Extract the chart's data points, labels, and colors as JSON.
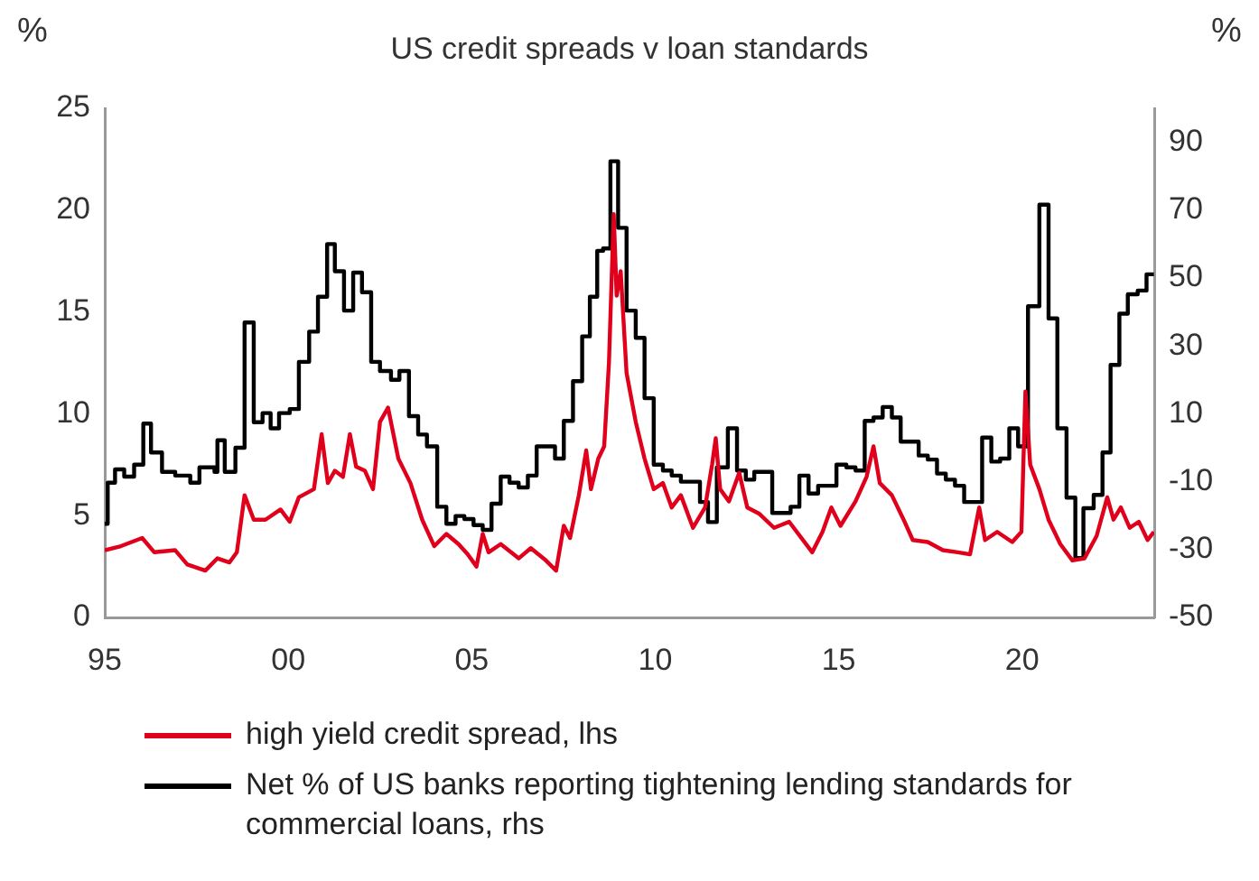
{
  "chart_data": {
    "type": "line",
    "title": "US credit spreads v loan standards",
    "ylabel": "%",
    "y2label": "%",
    "xlim": [
      1995,
      2023.6
    ],
    "xticks": [
      {
        "value": 1995,
        "label": "95"
      },
      {
        "value": 2000,
        "label": "00"
      },
      {
        "value": 2005,
        "label": "05"
      },
      {
        "value": 2010,
        "label": "10"
      },
      {
        "value": 2015,
        "label": "15"
      },
      {
        "value": 2020,
        "label": "20"
      }
    ],
    "ylim": [
      0,
      25
    ],
    "yticks": [
      0,
      5,
      10,
      15,
      20,
      25
    ],
    "y2lim": [
      -50,
      100
    ],
    "y2ticks": [
      -50,
      -30,
      -10,
      10,
      30,
      50,
      70,
      90
    ],
    "grid": false,
    "legend": "bottom",
    "series": [
      {
        "name": "high yield credit spread, lhs",
        "type": "line",
        "axis": "y",
        "color": "#e0001b",
        "x": [
          1995.0,
          1995.44,
          1996.02,
          1996.35,
          1996.92,
          1997.25,
          1997.74,
          1998.07,
          1998.4,
          1998.6,
          1998.81,
          1999.06,
          1999.38,
          1999.79,
          2000.04,
          2000.29,
          2000.7,
          2000.91,
          2001.08,
          2001.27,
          2001.49,
          2001.68,
          2001.85,
          2002.09,
          2002.31,
          2002.5,
          2002.72,
          2003.0,
          2003.33,
          2003.65,
          2003.98,
          2004.31,
          2004.64,
          2004.89,
          2005.13,
          2005.3,
          2005.46,
          2005.79,
          2006.28,
          2006.61,
          2007.02,
          2007.3,
          2007.51,
          2007.68,
          2007.92,
          2008.12,
          2008.25,
          2008.45,
          2008.61,
          2008.74,
          2008.87,
          2008.95,
          2009.06,
          2009.22,
          2009.47,
          2009.71,
          2009.96,
          2010.21,
          2010.45,
          2010.7,
          2011.03,
          2011.36,
          2011.55,
          2011.65,
          2011.77,
          2012.01,
          2012.29,
          2012.51,
          2012.83,
          2013.24,
          2013.65,
          2014.28,
          2014.56,
          2014.8,
          2015.05,
          2015.46,
          2015.76,
          2015.95,
          2016.12,
          2016.45,
          2016.77,
          2017.02,
          2017.43,
          2017.84,
          2018.25,
          2018.58,
          2018.83,
          2018.99,
          2019.32,
          2019.73,
          2019.98,
          2020.09,
          2020.22,
          2020.47,
          2020.72,
          2021.04,
          2021.37,
          2021.7,
          2022.03,
          2022.32,
          2022.49,
          2022.69,
          2022.93,
          2023.18,
          2023.42,
          2023.59
        ],
        "values": [
          3.3,
          3.5,
          3.9,
          3.2,
          3.3,
          2.6,
          2.3,
          2.9,
          2.7,
          3.2,
          6.0,
          4.8,
          4.8,
          5.3,
          4.7,
          5.9,
          6.3,
          9.0,
          6.6,
          7.2,
          6.9,
          9.0,
          7.4,
          7.2,
          6.3,
          9.6,
          10.3,
          7.8,
          6.6,
          4.8,
          3.5,
          4.1,
          3.6,
          3.1,
          2.5,
          4.1,
          3.2,
          3.6,
          2.9,
          3.4,
          2.8,
          2.3,
          4.5,
          3.9,
          6.0,
          8.2,
          6.3,
          7.8,
          8.4,
          12.5,
          19.8,
          15.8,
          17.0,
          12.0,
          9.6,
          7.8,
          6.3,
          6.6,
          5.4,
          6.0,
          4.4,
          5.4,
          7.5,
          8.8,
          6.3,
          5.7,
          7.1,
          5.4,
          5.1,
          4.4,
          4.7,
          3.2,
          4.2,
          5.4,
          4.5,
          5.7,
          6.9,
          8.4,
          6.6,
          6.0,
          4.8,
          3.8,
          3.7,
          3.3,
          3.2,
          3.1,
          5.4,
          3.8,
          4.2,
          3.7,
          4.2,
          11.1,
          7.5,
          6.3,
          4.8,
          3.6,
          2.8,
          2.9,
          4.0,
          5.9,
          4.8,
          5.4,
          4.4,
          4.7,
          3.8,
          4.2
        ]
      },
      {
        "name": "Net % of US banks reporting tightening lending standards for commercial loans, rhs",
        "type": "step",
        "axis": "y2",
        "color": "#000000",
        "x": [
          1995.0,
          1995.08,
          1995.28,
          1995.53,
          1995.8,
          1996.05,
          1996.26,
          1996.56,
          1996.92,
          1997.33,
          1997.58,
          1997.99,
          1998.07,
          1998.27,
          1998.56,
          1998.81,
          1999.06,
          1999.3,
          1999.52,
          1999.75,
          2000.04,
          2000.29,
          2000.57,
          2000.81,
          2001.06,
          2001.27,
          2001.52,
          2001.77,
          2002.01,
          2002.26,
          2002.5,
          2002.8,
          2003.03,
          2003.29,
          2003.54,
          2003.78,
          2004.06,
          2004.31,
          2004.56,
          2004.8,
          2005.05,
          2005.3,
          2005.54,
          2005.79,
          2006.03,
          2006.28,
          2006.53,
          2006.77,
          2007.27,
          2007.51,
          2007.76,
          2008.01,
          2008.22,
          2008.42,
          2008.58,
          2008.78,
          2008.99,
          2009.22,
          2009.47,
          2009.71,
          2009.96,
          2010.21,
          2010.45,
          2010.7,
          2011.22,
          2011.44,
          2011.68,
          2011.98,
          2012.23,
          2012.47,
          2012.7,
          2013.19,
          2013.69,
          2013.93,
          2014.18,
          2014.44,
          2014.94,
          2015.21,
          2015.46,
          2015.71,
          2015.95,
          2016.2,
          2016.45,
          2016.69,
          2017.18,
          2017.43,
          2017.68,
          2017.92,
          2018.17,
          2018.42,
          2018.91,
          2019.16,
          2019.4,
          2019.65,
          2019.89,
          2020.16,
          2020.47,
          2020.72,
          2020.96,
          2021.21,
          2021.45,
          2021.67,
          2021.95,
          2022.19,
          2022.41,
          2022.65,
          2022.88,
          2023.15,
          2023.39,
          2023.59
        ],
        "values": [
          -22.4,
          -10.3,
          -6.4,
          -8.5,
          -5,
          7.1,
          -1.4,
          -7.1,
          -8.2,
          -10.3,
          -5.8,
          -7.1,
          2.2,
          -7.1,
          0,
          36.9,
          7.5,
          10.2,
          5.7,
          10.2,
          11.4,
          25.3,
          34.2,
          44.5,
          60,
          52,
          40.4,
          51.6,
          45.8,
          25.3,
          22.6,
          20,
          22.6,
          9.3,
          3.9,
          0.4,
          -17.4,
          -22.4,
          -20.1,
          -21,
          -22.8,
          -24.2,
          -16.5,
          -8.5,
          -10.3,
          -11.7,
          -8.2,
          0.4,
          -3.2,
          7.9,
          19.6,
          32.8,
          44.5,
          58,
          58.7,
          84.4,
          64.8,
          40.4,
          32.4,
          14.6,
          -5,
          -6.7,
          -8.2,
          -10,
          -16,
          -21.9,
          -5.8,
          5.7,
          -6.7,
          -9.4,
          -7.1,
          -19.2,
          -17.4,
          -8.2,
          -13.5,
          -11.2,
          -5,
          -5.8,
          -6.7,
          7.9,
          8.9,
          12,
          8.9,
          1.8,
          -2.3,
          -3.5,
          -7.6,
          -9.4,
          -11.2,
          -16,
          3,
          -4.1,
          -3.2,
          5.7,
          0.4,
          41.7,
          71.6,
          38.1,
          5.7,
          -14.7,
          -32.5,
          -17.8,
          -13.9,
          -1.4,
          24.4,
          39.5,
          45.2,
          46.3,
          51.1,
          51.1
        ]
      }
    ]
  }
}
